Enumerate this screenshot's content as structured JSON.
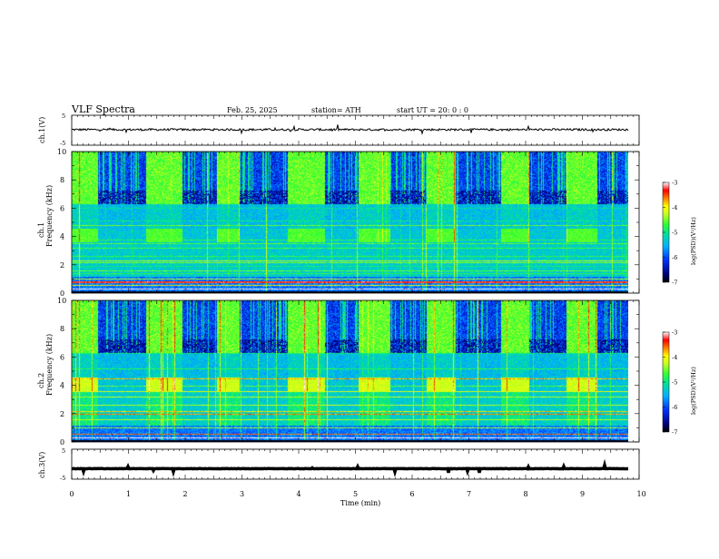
{
  "header": {
    "title": "VLF  Spectra",
    "date": "Feb. 25, 2025",
    "station": "station= ATH",
    "start": "start  UT  =   20: 0  : 0"
  },
  "colors": {
    "line": "#000000",
    "spec_low": "#000033",
    "spec_blue": "#0033cc",
    "spec_cyan": "#33ccdd",
    "spec_green": "#55e055",
    "spec_yellow": "#e8e020",
    "spec_red": "#e02020"
  },
  "chart_data": [
    {
      "type": "line",
      "name": "ch1-voltage",
      "ylabel": "ch.1(V)",
      "ylim": [
        -5,
        5
      ],
      "yticks": [
        "5",
        "-5"
      ],
      "xlim": [
        0,
        10
      ],
      "approx_level": 0.2,
      "noise": 0.35
    },
    {
      "type": "heatmap",
      "name": "ch1-spectrogram",
      "ylabel": "Frequency  (kHz)",
      "ylabel_ch": "ch.1",
      "ylim": [
        0,
        10
      ],
      "yticks": [
        "0",
        "2",
        "4",
        "6",
        "8",
        "10"
      ],
      "xlim": [
        0,
        9.8
      ],
      "colorbar": {
        "label": "log(PSD)(V²/Hz)",
        "ticks": [
          "-3",
          "-4",
          "-5",
          "-6",
          "-7"
        ],
        "range": [
          -7,
          -3
        ]
      },
      "transmitter_bursts_min": [
        [
          0,
          0.45
        ],
        [
          1.3,
          1.95
        ],
        [
          2.55,
          2.95
        ],
        [
          3.8,
          4.45
        ],
        [
          5.05,
          5.6
        ],
        [
          6.25,
          6.75
        ],
        [
          7.55,
          8.05
        ],
        [
          8.7,
          9.25
        ]
      ],
      "quiet_intervals_min": [
        [
          0.45,
          1.3
        ],
        [
          1.95,
          2.55
        ],
        [
          2.95,
          3.8
        ],
        [
          4.45,
          5.05
        ],
        [
          5.6,
          6.25
        ],
        [
          6.75,
          7.55
        ],
        [
          8.05,
          8.7
        ],
        [
          9.25,
          9.8
        ]
      ]
    },
    {
      "type": "heatmap",
      "name": "ch2-spectrogram",
      "ylabel": "Frequency  (kHz)",
      "ylabel_ch": "ch.2",
      "ylim": [
        0,
        10
      ],
      "yticks": [
        "0",
        "2",
        "4",
        "6",
        "8",
        "10"
      ],
      "xlim": [
        0,
        9.8
      ],
      "colorbar": {
        "label": "log(PSD)(V²/Hz)",
        "ticks": [
          "-3",
          "-4",
          "-5",
          "-6",
          "-7"
        ],
        "range": [
          -7,
          -3
        ]
      }
    },
    {
      "type": "line",
      "name": "ch3-voltage",
      "ylabel": "ch.3(V)",
      "ylim": [
        -5,
        5
      ],
      "yticks": [
        "5",
        "-5"
      ],
      "xlim": [
        0,
        10
      ],
      "approx_level": -1.5,
      "noise": 0.05
    }
  ],
  "xaxis": {
    "label": "Time  (min)",
    "ticks": [
      "0",
      "1",
      "2",
      "3",
      "4",
      "5",
      "6",
      "7",
      "8",
      "9",
      "10"
    ],
    "range": [
      0,
      10
    ]
  }
}
